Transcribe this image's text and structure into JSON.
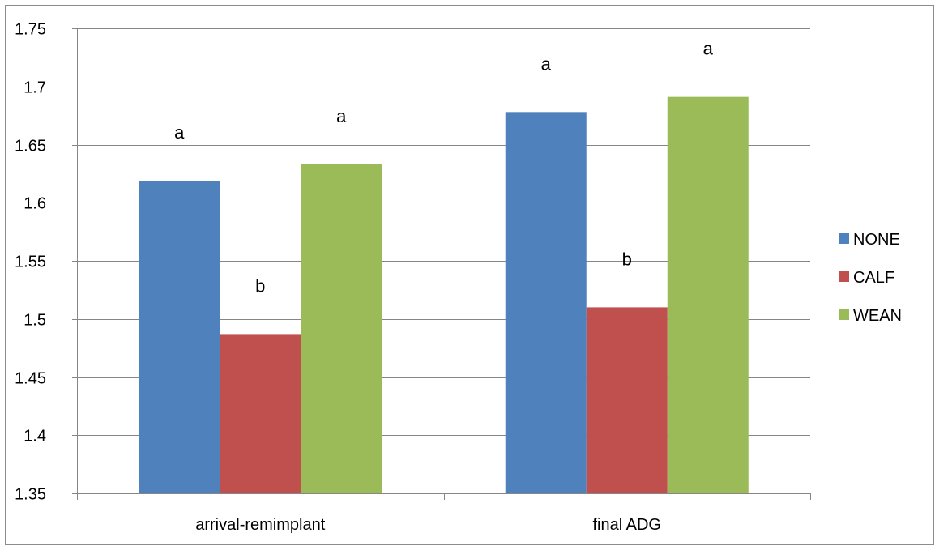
{
  "chart_data": {
    "type": "bar",
    "categories": [
      "arrival-remimplant",
      "final ADG"
    ],
    "series": [
      {
        "name": "NONE",
        "color": "#4F81BD",
        "values": [
          1.619,
          1.678
        ],
        "letters": [
          "a",
          "a"
        ]
      },
      {
        "name": "CALF",
        "color": "#C0504D",
        "values": [
          1.487,
          1.51
        ],
        "letters": [
          "b",
          "b"
        ]
      },
      {
        "name": "WEAN",
        "color": "#9BBB59",
        "values": [
          1.633,
          1.691
        ],
        "letters": [
          "a",
          "a"
        ]
      }
    ],
    "ylim": [
      1.35,
      1.75
    ],
    "yticks": [
      "1.35",
      "1.4",
      "1.45",
      "1.5",
      "1.55",
      "1.6",
      "1.65",
      "1.7",
      "1.75"
    ],
    "grid": true,
    "legend_position": "right"
  }
}
